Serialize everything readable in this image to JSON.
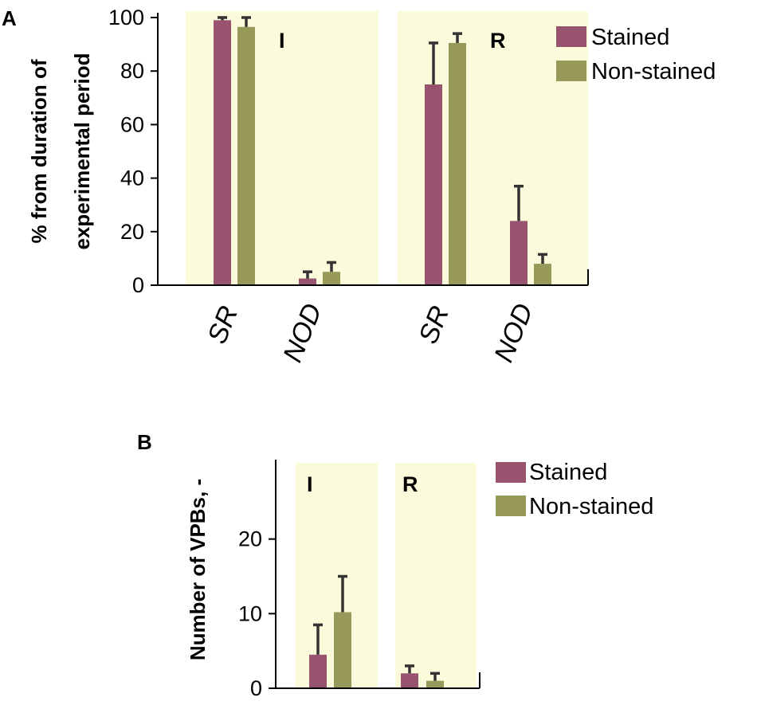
{
  "colors": {
    "stained": "#98546f",
    "non_stained": "#979958",
    "region_bg": "#fbfbdc",
    "errorbar": "#333333"
  },
  "chart_data": [
    {
      "type": "bar",
      "panel": "A",
      "ylabel_lines": [
        "% from duration of",
        "experimental period"
      ],
      "ylim": [
        0,
        100
      ],
      "yticks": [
        0,
        20,
        40,
        60,
        80,
        100
      ],
      "ytick_labels": [
        "0",
        "20",
        "40",
        "60",
        "80",
        "100"
      ],
      "categories": [
        "SR",
        "NOD",
        "SR",
        "NOD"
      ],
      "groups": [
        {
          "label": "I",
          "categories": [
            "SR",
            "NOD"
          ]
        },
        {
          "label": "R",
          "categories": [
            "SR",
            "NOD"
          ]
        }
      ],
      "series": [
        {
          "name": "Stained",
          "values": [
            99,
            2.5,
            75,
            24
          ],
          "errors": [
            1,
            2.5,
            15.5,
            13
          ]
        },
        {
          "name": "Non-stained",
          "values": [
            96.5,
            5,
            90.5,
            8
          ],
          "errors": [
            3.5,
            3.5,
            3.5,
            3.5
          ]
        }
      ]
    },
    {
      "type": "bar",
      "panel": "B",
      "ylabel": "Number of VPBs, -",
      "ylim": [
        0,
        30
      ],
      "yticks": [
        0,
        10,
        20
      ],
      "ytick_labels": [
        "0",
        "10",
        "20"
      ],
      "groups": [
        {
          "label": "I",
          "categories": [
            ""
          ]
        },
        {
          "label": "R",
          "categories": [
            ""
          ]
        }
      ],
      "series": [
        {
          "name": "Stained",
          "values": [
            4.5,
            2
          ],
          "errors": [
            4,
            1
          ]
        },
        {
          "name": "Non-stained",
          "values": [
            10.2,
            1
          ],
          "errors": [
            4.8,
            1
          ]
        }
      ]
    }
  ]
}
